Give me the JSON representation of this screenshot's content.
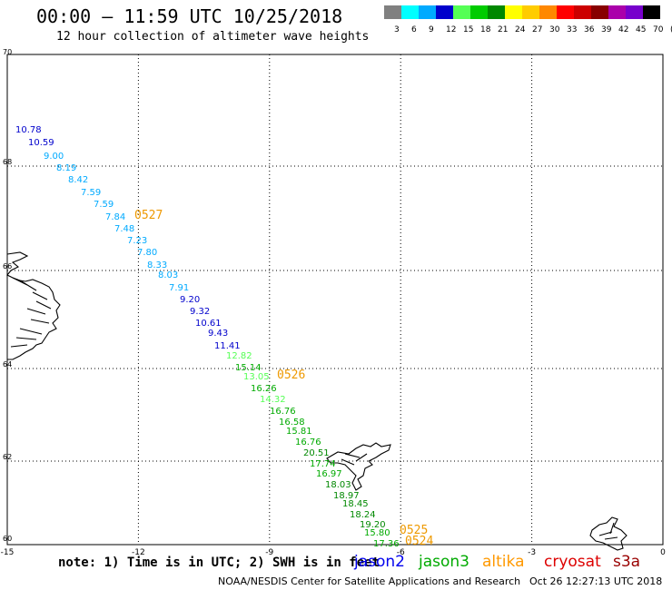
{
  "header": {
    "title": "00:00 – 11:59 UTC 10/25/2018",
    "subtitle": "12 hour collection of altimeter wave heights"
  },
  "colorbar": {
    "colors": [
      "#808080",
      "#00ffff",
      "#00aaff",
      "#0000cc",
      "#55ff55",
      "#00cc00",
      "#008800",
      "#ffff00",
      "#ffcc00",
      "#ff8800",
      "#ff0000",
      "#cc0000",
      "#880000",
      "#aa00aa",
      "#7700cc",
      "#000000"
    ],
    "labels": [
      "3",
      "6",
      "9",
      "12",
      "15",
      "18",
      "21",
      "24",
      "27",
      "30",
      "33",
      "36",
      "39",
      "42",
      "45",
      "70",
      "(ft)"
    ]
  },
  "axes": {
    "x_ticks": [
      "-15",
      "-12",
      "-9",
      "-6",
      "-3",
      "0"
    ],
    "y_ticks": [
      "70",
      "68",
      "66",
      "64",
      "62",
      "60"
    ]
  },
  "observations": [
    {
      "value": "10.78",
      "color": "#0000cc"
    },
    {
      "value": "10.59",
      "color": "#0000cc"
    },
    {
      "value": "9.00",
      "color": "#00aaff"
    },
    {
      "value": "8.19",
      "color": "#00aaff"
    },
    {
      "value": "8.42",
      "color": "#00aaff"
    },
    {
      "value": "7.59",
      "color": "#00aaff"
    },
    {
      "value": "7.59",
      "color": "#00aaff"
    },
    {
      "value": "7.84",
      "color": "#00aaff"
    },
    {
      "value": "7.48",
      "color": "#00aaff"
    },
    {
      "value": "7.23",
      "color": "#00aaff"
    },
    {
      "value": "7.80",
      "color": "#00aaff"
    },
    {
      "value": "8.33",
      "color": "#00aaff"
    },
    {
      "value": "8.03",
      "color": "#00aaff"
    },
    {
      "value": "7.91",
      "color": "#00aaff"
    },
    {
      "value": "9.20",
      "color": "#0000cc"
    },
    {
      "value": "9.32",
      "color": "#0000cc"
    },
    {
      "value": "10.61",
      "color": "#0000cc"
    },
    {
      "value": "9.43",
      "color": "#0000cc"
    },
    {
      "value": "11.41",
      "color": "#0000cc"
    },
    {
      "value": "12.82",
      "color": "#55ff55"
    },
    {
      "value": "15.14",
      "color": "#00aa00"
    },
    {
      "value": "13.05",
      "color": "#55ff55"
    },
    {
      "value": "16.26",
      "color": "#00aa00"
    },
    {
      "value": "14.32",
      "color": "#55ff55"
    },
    {
      "value": "16.76",
      "color": "#00aa00"
    },
    {
      "value": "16.58",
      "color": "#00aa00"
    },
    {
      "value": "15.81",
      "color": "#00aa00"
    },
    {
      "value": "16.76",
      "color": "#00aa00"
    },
    {
      "value": "20.51",
      "color": "#008800"
    },
    {
      "value": "17.74",
      "color": "#00aa00"
    },
    {
      "value": "16.97",
      "color": "#00aa00"
    },
    {
      "value": "18.03",
      "color": "#008800"
    },
    {
      "value": "18.97",
      "color": "#008800"
    },
    {
      "value": "18.45",
      "color": "#008800"
    },
    {
      "value": "18.24",
      "color": "#008800"
    },
    {
      "value": "19.20",
      "color": "#008800"
    },
    {
      "value": "15.80",
      "color": "#00aa00"
    },
    {
      "value": "17.36",
      "color": "#00aa00"
    }
  ],
  "pass_labels": [
    {
      "text": "0527",
      "color": "#ee9900"
    },
    {
      "text": "0526",
      "color": "#ee9900"
    },
    {
      "text": "0525",
      "color": "#ee9900"
    },
    {
      "text": "0524",
      "color": "#ee9900"
    }
  ],
  "footer": {
    "note": "note: 1) Time is in UTC; 2) SWH is in feet",
    "satellites": [
      {
        "name": "jason2",
        "color": "#0000ee"
      },
      {
        "name": "jason3",
        "color": "#00aa00"
      },
      {
        "name": "altika",
        "color": "#ff9900"
      },
      {
        "name": "cryosat",
        "color": "#dd0000"
      },
      {
        "name": "s3a",
        "color": "#990000"
      }
    ],
    "credit": "NOAA/NESDIS Center for Satellite Applications and Research",
    "timestamp": "Oct 26 12:27:13 UTC 2018"
  }
}
